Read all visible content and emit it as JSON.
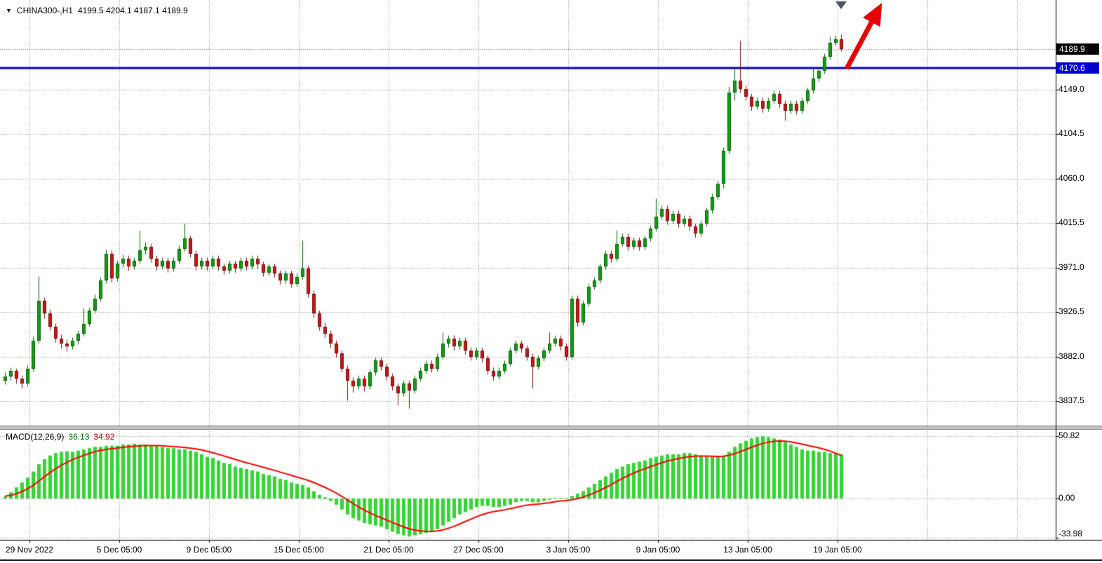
{
  "header": {
    "symbol": "CHINA300-,H1",
    "ohlc": "4199.5 4204.1 4187.1 4189.9"
  },
  "macd": {
    "label": "MACD(12,26,9)",
    "value": "36.13",
    "signal": "34.92"
  },
  "colors": {
    "bull": "#10a010",
    "bull_edge": "#076307",
    "bear": "#cc1414",
    "bear_edge": "#7d0e0e",
    "histogram": "#33d633",
    "signal": "#ff0000",
    "hline": "#0000cc",
    "grid": "#8a8a8a",
    "arrow": "#e60000",
    "marker": "#4d565e",
    "badge_bid_bg": "#000000",
    "badge_hline_bg": "#0000cc"
  },
  "chart_data": {
    "type": "candlestick",
    "title": "CHINA300-,H1",
    "timeframe": "H1",
    "current_bar": {
      "open": 4199.5,
      "high": 4204.1,
      "low": 4187.1,
      "close": 4189.9
    },
    "x_tick_labels": [
      "29 Nov 2022",
      "5 Dec 05:00",
      "9 Dec 05:00",
      "15 Dec 05:00",
      "21 Dec 05:00",
      "27 Dec 05:00",
      "3 Jan 05:00",
      "9 Jan 05:00",
      "13 Jan 05:00",
      "19 Jan 05:00"
    ],
    "y_axis": {
      "ticks": [
        4149.0,
        4104.5,
        4060.0,
        4015.5,
        3971.0,
        3926.5,
        3882.0,
        3837.5
      ],
      "bid": 4189.9,
      "hline": 4170.6
    },
    "annotations": {
      "horizontal_line_price": 4170.6,
      "arrow": "red up-right trend arrow at top right"
    },
    "candles": [
      [
        3858,
        3866,
        3854,
        3862
      ],
      [
        3862,
        3871,
        3858,
        3868
      ],
      [
        3868,
        3870,
        3855,
        3860
      ],
      [
        3860,
        3863,
        3850,
        3855
      ],
      [
        3855,
        3873,
        3852,
        3870
      ],
      [
        3870,
        3902,
        3867,
        3898
      ],
      [
        3898,
        3962,
        3895,
        3938
      ],
      [
        3938,
        3941,
        3920,
        3925
      ],
      [
        3925,
        3929,
        3908,
        3912
      ],
      [
        3912,
        3915,
        3896,
        3900
      ],
      [
        3900,
        3904,
        3890,
        3895
      ],
      [
        3895,
        3899,
        3887,
        3892
      ],
      [
        3892,
        3901,
        3889,
        3898
      ],
      [
        3898,
        3908,
        3894,
        3905
      ],
      [
        3905,
        3930,
        3902,
        3915
      ],
      [
        3915,
        3931,
        3912,
        3928
      ],
      [
        3928,
        3944,
        3925,
        3940
      ],
      [
        3940,
        3961,
        3937,
        3958
      ],
      [
        3958,
        3989,
        3955,
        3985
      ],
      [
        3985,
        3988,
        3956,
        3960
      ],
      [
        3960,
        3978,
        3957,
        3975
      ],
      [
        3975,
        3984,
        3971,
        3980
      ],
      [
        3980,
        3983,
        3968,
        3972
      ],
      [
        3972,
        3981,
        3969,
        3978
      ],
      [
        3978,
        4008,
        3975,
        3988
      ],
      [
        3988,
        3996,
        3984,
        3992
      ],
      [
        3992,
        3995,
        3976,
        3980
      ],
      [
        3980,
        3983,
        3968,
        3972
      ],
      [
        3972,
        3981,
        3969,
        3978
      ],
      [
        3978,
        3981,
        3966,
        3970
      ],
      [
        3970,
        3981,
        3967,
        3978
      ],
      [
        3978,
        3993,
        3975,
        3990
      ],
      [
        3990,
        4015,
        3987,
        4000
      ],
      [
        4000,
        4003,
        3981,
        3985
      ],
      [
        3985,
        3988,
        3968,
        3972
      ],
      [
        3972,
        3981,
        3969,
        3978
      ],
      [
        3978,
        3981,
        3968,
        3972
      ],
      [
        3972,
        3983,
        3969,
        3980
      ],
      [
        3980,
        3983,
        3968,
        3972
      ],
      [
        3972,
        3975,
        3964,
        3968
      ],
      [
        3968,
        3978,
        3965,
        3975
      ],
      [
        3975,
        3978,
        3966,
        3970
      ],
      [
        3970,
        3981,
        3967,
        3978
      ],
      [
        3978,
        3981,
        3968,
        3972
      ],
      [
        3972,
        3983,
        3969,
        3980
      ],
      [
        3980,
        3983,
        3970,
        3974
      ],
      [
        3974,
        3977,
        3962,
        3966
      ],
      [
        3966,
        3975,
        3963,
        3972
      ],
      [
        3972,
        3975,
        3961,
        3965
      ],
      [
        3965,
        3968,
        3954,
        3958
      ],
      [
        3958,
        3968,
        3955,
        3965
      ],
      [
        3965,
        3968,
        3951,
        3955
      ],
      [
        3955,
        3965,
        3952,
        3962
      ],
      [
        3962,
        3998,
        3959,
        3970
      ],
      [
        3970,
        3973,
        3941,
        3945
      ],
      [
        3945,
        3948,
        3921,
        3925
      ],
      [
        3925,
        3928,
        3908,
        3912
      ],
      [
        3912,
        3916,
        3901,
        3905
      ],
      [
        3905,
        3908,
        3891,
        3895
      ],
      [
        3895,
        3898,
        3881,
        3885
      ],
      [
        3885,
        3888,
        3866,
        3870
      ],
      [
        3870,
        3873,
        3838,
        3858
      ],
      [
        3858,
        3861,
        3846,
        3852
      ],
      [
        3852,
        3863,
        3849,
        3860
      ],
      [
        3860,
        3863,
        3847,
        3852
      ],
      [
        3852,
        3869,
        3849,
        3866
      ],
      [
        3866,
        3881,
        3863,
        3878
      ],
      [
        3878,
        3881,
        3868,
        3872
      ],
      [
        3872,
        3875,
        3858,
        3862
      ],
      [
        3862,
        3865,
        3848,
        3852
      ],
      [
        3852,
        3855,
        3833,
        3845
      ],
      [
        3845,
        3858,
        3842,
        3855
      ],
      [
        3855,
        3858,
        3830,
        3848
      ],
      [
        3848,
        3863,
        3845,
        3860
      ],
      [
        3860,
        3871,
        3857,
        3868
      ],
      [
        3868,
        3878,
        3865,
        3875
      ],
      [
        3875,
        3878,
        3866,
        3870
      ],
      [
        3870,
        3885,
        3867,
        3882
      ],
      [
        3882,
        3906,
        3879,
        3895
      ],
      [
        3895,
        3903,
        3891,
        3900
      ],
      [
        3900,
        3903,
        3888,
        3892
      ],
      [
        3892,
        3901,
        3889,
        3898
      ],
      [
        3898,
        3901,
        3884,
        3888
      ],
      [
        3888,
        3891,
        3878,
        3882
      ],
      [
        3882,
        3891,
        3879,
        3888
      ],
      [
        3888,
        3891,
        3876,
        3880
      ],
      [
        3880,
        3883,
        3864,
        3868
      ],
      [
        3868,
        3871,
        3858,
        3862
      ],
      [
        3862,
        3871,
        3859,
        3868
      ],
      [
        3868,
        3878,
        3865,
        3875
      ],
      [
        3875,
        3891,
        3872,
        3888
      ],
      [
        3888,
        3898,
        3885,
        3895
      ],
      [
        3895,
        3898,
        3886,
        3890
      ],
      [
        3890,
        3893,
        3878,
        3882
      ],
      [
        3882,
        3885,
        3850,
        3872
      ],
      [
        3872,
        3883,
        3869,
        3880
      ],
      [
        3880,
        3891,
        3877,
        3888
      ],
      [
        3888,
        3906,
        3885,
        3895
      ],
      [
        3895,
        3903,
        3892,
        3900
      ],
      [
        3900,
        3903,
        3888,
        3892
      ],
      [
        3892,
        3895,
        3878,
        3882
      ],
      [
        3882,
        3943,
        3879,
        3940
      ],
      [
        3940,
        3943,
        3912,
        3916
      ],
      [
        3916,
        3938,
        3913,
        3935
      ],
      [
        3935,
        3955,
        3932,
        3952
      ],
      [
        3952,
        3961,
        3949,
        3958
      ],
      [
        3958,
        3975,
        3955,
        3972
      ],
      [
        3972,
        3988,
        3969,
        3985
      ],
      [
        3985,
        3988,
        3976,
        3980
      ],
      [
        3980,
        4008,
        3977,
        3995
      ],
      [
        3995,
        4005,
        3992,
        4002
      ],
      [
        4002,
        4005,
        3988,
        3992
      ],
      [
        3992,
        4001,
        3989,
        3998
      ],
      [
        3998,
        4001,
        3988,
        3992
      ],
      [
        3992,
        4003,
        3989,
        4000
      ],
      [
        4000,
        4013,
        3997,
        4010
      ],
      [
        4010,
        4040,
        4007,
        4022
      ],
      [
        4022,
        4033,
        4019,
        4030
      ],
      [
        4030,
        4033,
        4014,
        4018
      ],
      [
        4018,
        4028,
        4015,
        4025
      ],
      [
        4025,
        4028,
        4011,
        4015
      ],
      [
        4015,
        4023,
        4012,
        4020
      ],
      [
        4020,
        4023,
        4008,
        4012
      ],
      [
        4012,
        4015,
        4001,
        4005
      ],
      [
        4005,
        4018,
        4002,
        4015
      ],
      [
        4015,
        4031,
        4012,
        4028
      ],
      [
        4028,
        4045,
        4025,
        4042
      ],
      [
        4042,
        4058,
        4039,
        4055
      ],
      [
        4055,
        4091,
        4050,
        4088
      ],
      [
        4088,
        4152,
        4085,
        4146
      ],
      [
        4146,
        4172,
        4138,
        4158
      ],
      [
        4158,
        4198,
        4146,
        4150
      ],
      [
        4150,
        4153,
        4138,
        4142
      ],
      [
        4142,
        4145,
        4128,
        4132
      ],
      [
        4132,
        4141,
        4129,
        4138
      ],
      [
        4138,
        4141,
        4126,
        4130
      ],
      [
        4130,
        4141,
        4127,
        4138
      ],
      [
        4138,
        4148,
        4135,
        4145
      ],
      [
        4145,
        4148,
        4131,
        4135
      ],
      [
        4135,
        4138,
        4118,
        4128
      ],
      [
        4128,
        4138,
        4125,
        4135
      ],
      [
        4135,
        4138,
        4124,
        4128
      ],
      [
        4128,
        4141,
        4125,
        4138
      ],
      [
        4138,
        4151,
        4135,
        4148
      ],
      [
        4148,
        4172,
        4145,
        4160
      ],
      [
        4160,
        4171,
        4157,
        4168
      ],
      [
        4168,
        4185,
        4165,
        4182
      ],
      [
        4182,
        4202,
        4179,
        4196
      ],
      [
        4196,
        4203,
        4193,
        4199.5
      ],
      [
        4199.5,
        4204.1,
        4187.1,
        4189.9
      ]
    ],
    "indicator": {
      "type": "MACD",
      "params": "12,26,9",
      "macd_value": 36.13,
      "signal_value": 34.92,
      "scale_ticks": [
        50.82,
        0,
        -33.98
      ],
      "histogram": [
        2,
        5,
        9,
        13,
        17,
        22,
        28,
        32,
        35,
        37,
        38,
        38.5,
        38,
        39,
        40,
        41,
        42,
        42,
        43,
        43,
        43,
        44,
        44,
        44.5,
        44,
        44,
        43,
        43,
        42,
        41,
        41,
        40,
        40,
        39,
        38,
        36,
        34,
        33,
        31,
        29,
        28,
        26,
        25,
        24,
        23,
        22,
        20,
        19,
        18,
        16,
        15,
        13,
        12,
        11,
        9,
        6,
        3,
        1,
        -2,
        -5,
        -9,
        -13,
        -16,
        -18,
        -20,
        -21,
        -22,
        -23,
        -25,
        -27,
        -29,
        -30,
        -31,
        -30,
        -29,
        -28,
        -27,
        -25,
        -22,
        -19,
        -16,
        -13,
        -11,
        -9,
        -7,
        -6,
        -6,
        -7,
        -7,
        -6,
        -5,
        -3,
        -2,
        -2,
        -3,
        -3,
        -2,
        -1,
        0.5,
        0.5,
        -0.5,
        2,
        4,
        6,
        9,
        12,
        15,
        18,
        21,
        24,
        26,
        28,
        29,
        30,
        31,
        33,
        34,
        35,
        36,
        36,
        36,
        37,
        37,
        36,
        35,
        34,
        34,
        34,
        35,
        38,
        42,
        45,
        47,
        49,
        50,
        50.82,
        50,
        49,
        48,
        46,
        44,
        42,
        40,
        39,
        39,
        38,
        38,
        37,
        36.5,
        36.13
      ],
      "signal": [
        2.0,
        2.6,
        3.9,
        5.7,
        8.0,
        10.8,
        14.2,
        17.8,
        21.2,
        24.4,
        27.1,
        29.5,
        31.6,
        33.5,
        35.2,
        36.7,
        38.2,
        39.3,
        40.0,
        40.6,
        41.1,
        41.7,
        42.2,
        42.6,
        42.9,
        43.1,
        43.1,
        43.1,
        42.9,
        42.6,
        42.3,
        41.9,
        41.5,
        41.0,
        40.4,
        39.5,
        38.4,
        37.3,
        36.0,
        34.6,
        33.3,
        31.8,
        30.4,
        29.1,
        27.9,
        26.7,
        25.4,
        24.1,
        22.9,
        21.5,
        20.2,
        18.8,
        17.4,
        16.2,
        14.7,
        13.0,
        11.0,
        9.0,
        6.8,
        4.4,
        1.7,
        -1.2,
        -4.2,
        -6.9,
        -9.5,
        -11.8,
        -13.9,
        -15.7,
        -17.6,
        -19.5,
        -21.4,
        -23.1,
        -24.7,
        -25.7,
        -26.4,
        -26.7,
        -26.8,
        -26.4,
        -25.5,
        -24.2,
        -22.6,
        -20.7,
        -18.7,
        -16.8,
        -14.8,
        -13.1,
        -11.7,
        -10.7,
        -10.0,
        -9.2,
        -8.3,
        -7.3,
        -6.2,
        -5.4,
        -4.9,
        -4.5,
        -4.0,
        -3.4,
        -2.6,
        -2.0,
        -1.7,
        -1.0,
        0.0,
        1.2,
        2.8,
        4.6,
        6.7,
        9.0,
        11.4,
        13.9,
        16.3,
        18.7,
        20.7,
        22.6,
        24.3,
        26.0,
        27.6,
        29.1,
        30.5,
        31.6,
        32.5,
        33.4,
        34.1,
        34.5,
        34.6,
        34.5,
        34.4,
        34.3,
        34.4,
        35.2,
        36.5,
        38.2,
        40.0,
        41.8,
        43.4,
        44.9,
        45.9,
        46.5,
        46.8,
        46.7,
        46.1,
        45.3,
        44.2,
        43.2,
        42.2,
        41.2,
        40.0,
        38.6,
        36.8,
        34.92
      ]
    }
  }
}
